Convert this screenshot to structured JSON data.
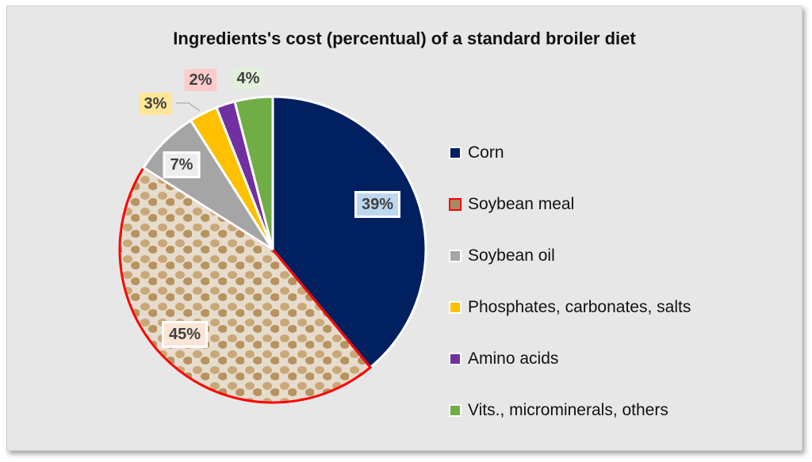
{
  "chart_data": {
    "type": "pie",
    "title": "Ingredients's cost (percentual) of a standard broiler diet",
    "categories": [
      "Corn",
      "Soybean meal",
      "Soybean oil",
      "Phosphates, carbonates, salts",
      "Amino acids",
      "Vits., microminerals, others"
    ],
    "values": [
      39,
      45,
      7,
      3,
      2,
      4
    ],
    "data_labels": [
      "39%",
      "45%",
      "7%",
      "3%",
      "2%",
      "4%"
    ],
    "colors": [
      "#002060",
      "#d9c8a8",
      "#a5a5a5",
      "#ffc000",
      "#7030a0",
      "#70ad47"
    ],
    "label_backgrounds": [
      "#bdd7ee",
      "#fbe5d6",
      "#ededed",
      "#ffe699",
      "#ffcccc",
      "#e2efda"
    ],
    "highlight_border": "#ff0000",
    "legend_position": "right",
    "start_angle": "top, clockwise"
  }
}
